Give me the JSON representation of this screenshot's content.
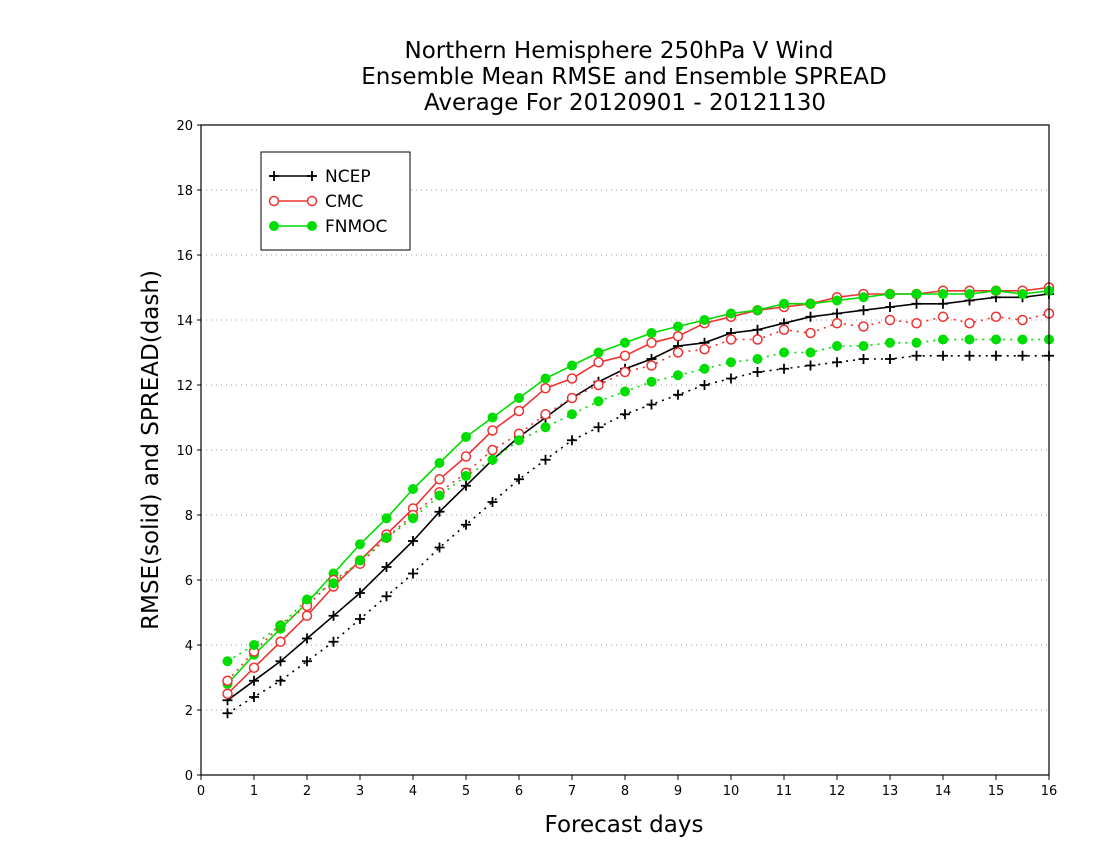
{
  "chart_data": {
    "type": "line",
    "title": [
      "Northern Hemisphere 250hPa V Wind",
      "Ensemble Mean RMSE and Ensemble SPREAD",
      "Average For 20120901 - 20121130"
    ],
    "xlabel": "Forecast days",
    "ylabel": "RMSE(solid) and SPREAD(dash)",
    "xlim": [
      0,
      16
    ],
    "ylim": [
      0,
      20
    ],
    "xticks": [
      0,
      1,
      2,
      3,
      4,
      5,
      6,
      7,
      8,
      9,
      10,
      11,
      12,
      13,
      14,
      15,
      16
    ],
    "yticks": [
      0,
      2,
      4,
      6,
      8,
      10,
      12,
      14,
      16,
      18,
      20
    ],
    "grid": "dotted horizontal lines at major y ticks",
    "legend_position": "top-left",
    "x": [
      0.5,
      1,
      1.5,
      2,
      2.5,
      3,
      3.5,
      4,
      4.5,
      5,
      5.5,
      6,
      6.5,
      7,
      7.5,
      8,
      8.5,
      9,
      9.5,
      10,
      10.5,
      11,
      11.5,
      12,
      12.5,
      13,
      13.5,
      14,
      14.5,
      15,
      15.5,
      16
    ],
    "series": [
      {
        "name": "NCEP",
        "metric": "RMSE",
        "style": "solid",
        "marker": "plus",
        "color": "#000000",
        "values": [
          2.3,
          2.9,
          3.5,
          4.2,
          4.9,
          5.6,
          6.4,
          7.2,
          8.1,
          8.9,
          9.7,
          10.4,
          11.0,
          11.6,
          12.1,
          12.5,
          12.8,
          13.2,
          13.3,
          13.6,
          13.7,
          13.9,
          14.1,
          14.2,
          14.3,
          14.4,
          14.5,
          14.5,
          14.6,
          14.7,
          14.7,
          14.8
        ]
      },
      {
        "name": "CMC",
        "metric": "RMSE",
        "style": "solid",
        "marker": "circle-open",
        "color": "#ee3333",
        "values": [
          2.5,
          3.3,
          4.1,
          4.9,
          5.8,
          6.6,
          7.4,
          8.2,
          9.1,
          9.8,
          10.6,
          11.2,
          11.9,
          12.2,
          12.7,
          12.9,
          13.3,
          13.5,
          13.9,
          14.1,
          14.3,
          14.4,
          14.5,
          14.7,
          14.8,
          14.8,
          14.8,
          14.9,
          14.9,
          14.9,
          14.9,
          15.0
        ]
      },
      {
        "name": "FNMOC",
        "metric": "RMSE",
        "style": "solid",
        "marker": "circle-filled",
        "color": "#00dd00",
        "values": [
          2.8,
          3.7,
          4.5,
          5.3,
          6.2,
          7.1,
          7.9,
          8.8,
          9.6,
          10.4,
          11.0,
          11.6,
          12.2,
          12.6,
          13.0,
          13.3,
          13.6,
          13.8,
          14.0,
          14.2,
          14.3,
          14.5,
          14.5,
          14.6,
          14.7,
          14.8,
          14.8,
          14.8,
          14.8,
          14.9,
          14.8,
          14.9
        ]
      },
      {
        "name": "NCEP",
        "metric": "SPREAD",
        "style": "dash",
        "marker": "plus",
        "color": "#000000",
        "values": [
          1.9,
          2.4,
          2.9,
          3.5,
          4.1,
          4.8,
          5.5,
          6.2,
          7.0,
          7.7,
          8.4,
          9.1,
          9.7,
          10.3,
          10.7,
          11.1,
          11.4,
          11.7,
          12.0,
          12.2,
          12.4,
          12.5,
          12.6,
          12.7,
          12.8,
          12.8,
          12.9,
          12.9,
          12.9,
          12.9,
          12.9,
          12.9
        ]
      },
      {
        "name": "CMC",
        "metric": "SPREAD",
        "style": "dash",
        "marker": "circle-open",
        "color": "#ee3333",
        "values": [
          2.9,
          3.8,
          4.6,
          5.2,
          6.0,
          6.5,
          7.3,
          8.0,
          8.7,
          9.3,
          10.0,
          10.5,
          11.1,
          11.6,
          12.0,
          12.4,
          12.6,
          13.0,
          13.1,
          13.4,
          13.4,
          13.7,
          13.6,
          13.9,
          13.8,
          14.0,
          13.9,
          14.1,
          13.9,
          14.1,
          14.0,
          14.2
        ]
      },
      {
        "name": "FNMOC",
        "metric": "SPREAD",
        "style": "dash",
        "marker": "circle-filled",
        "color": "#00dd00",
        "values": [
          3.5,
          4.0,
          4.6,
          5.4,
          5.9,
          6.6,
          7.3,
          7.9,
          8.6,
          9.2,
          9.7,
          10.3,
          10.7,
          11.1,
          11.5,
          11.8,
          12.1,
          12.3,
          12.5,
          12.7,
          12.8,
          13.0,
          13.0,
          13.2,
          13.2,
          13.3,
          13.3,
          13.4,
          13.4,
          13.4,
          13.4,
          13.4
        ]
      }
    ],
    "legend": [
      {
        "label": "NCEP",
        "marker": "plus",
        "color": "#000000"
      },
      {
        "label": "CMC",
        "marker": "circle-open",
        "color": "#ee3333"
      },
      {
        "label": "FNMOC",
        "marker": "circle-filled",
        "color": "#00dd00"
      }
    ]
  }
}
